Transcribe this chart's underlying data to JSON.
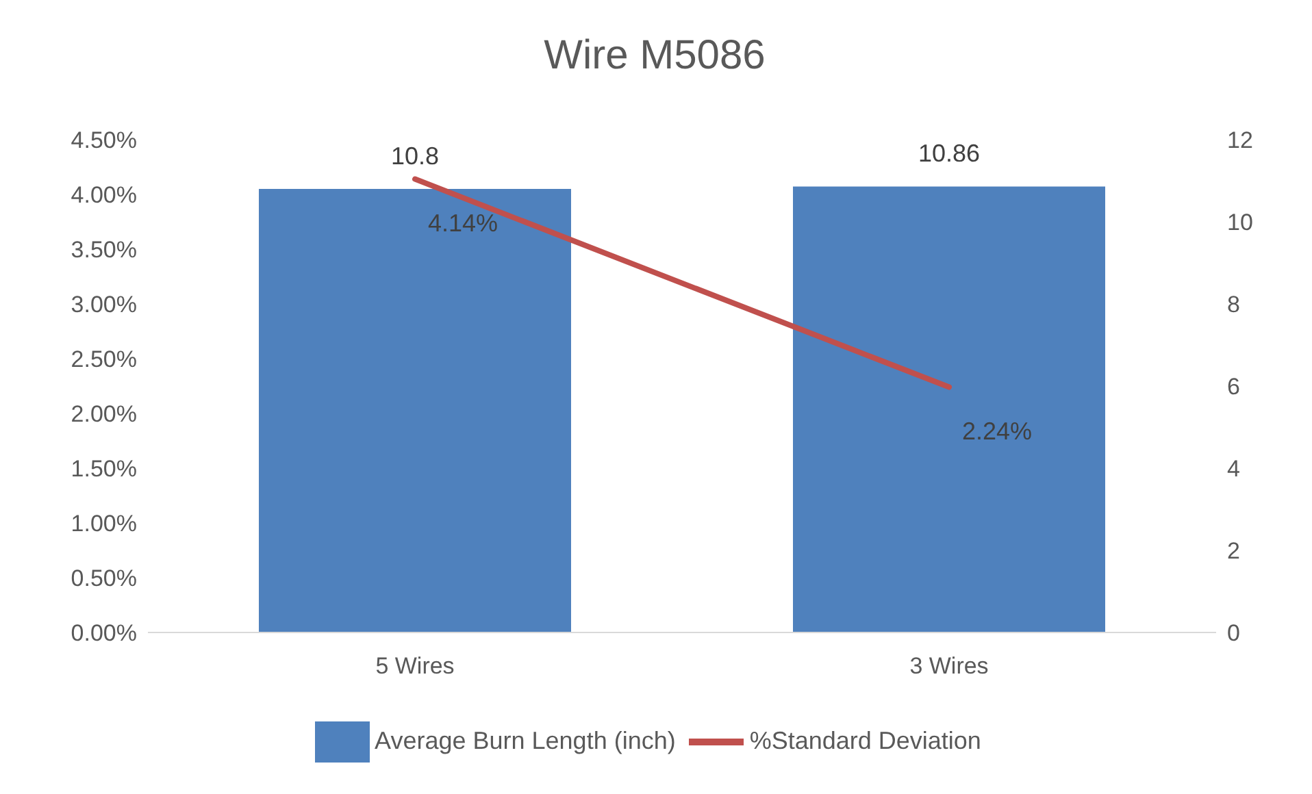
{
  "chart_data": {
    "type": "bar",
    "title": "Wire M5086",
    "categories": [
      "5 Wires",
      "3 Wires"
    ],
    "series": [
      {
        "name": "Average Burn Length (inch)",
        "axis": "y2",
        "color": "#4f81bd",
        "values": [
          10.8,
          10.86
        ],
        "value_labels": [
          "10.8",
          "10.86"
        ]
      },
      {
        "name": "%Standard Deviation",
        "type": "line",
        "axis": "y",
        "color": "#c0504d",
        "values": [
          4.14,
          2.24
        ],
        "value_labels": [
          "4.14%",
          "2.24%"
        ]
      }
    ],
    "ylim": [
      0,
      4.5
    ],
    "yticks": [
      {
        "value": 0,
        "label": "0.00%"
      },
      {
        "value": 0.5,
        "label": "0.50%"
      },
      {
        "value": 1,
        "label": "1.00%"
      },
      {
        "value": 1.5,
        "label": "1.50%"
      },
      {
        "value": 2,
        "label": "2.00%"
      },
      {
        "value": 2.5,
        "label": "2.50%"
      },
      {
        "value": 3,
        "label": "3.00%"
      },
      {
        "value": 3.5,
        "label": "3.50%"
      },
      {
        "value": 4,
        "label": "4.00%"
      },
      {
        "value": 4.5,
        "label": "4.50%"
      }
    ],
    "y2lim": [
      0,
      12
    ],
    "y2ticks": [
      0,
      2,
      4,
      6,
      8,
      10,
      12
    ],
    "legend": "bottom",
    "marker": "none"
  }
}
